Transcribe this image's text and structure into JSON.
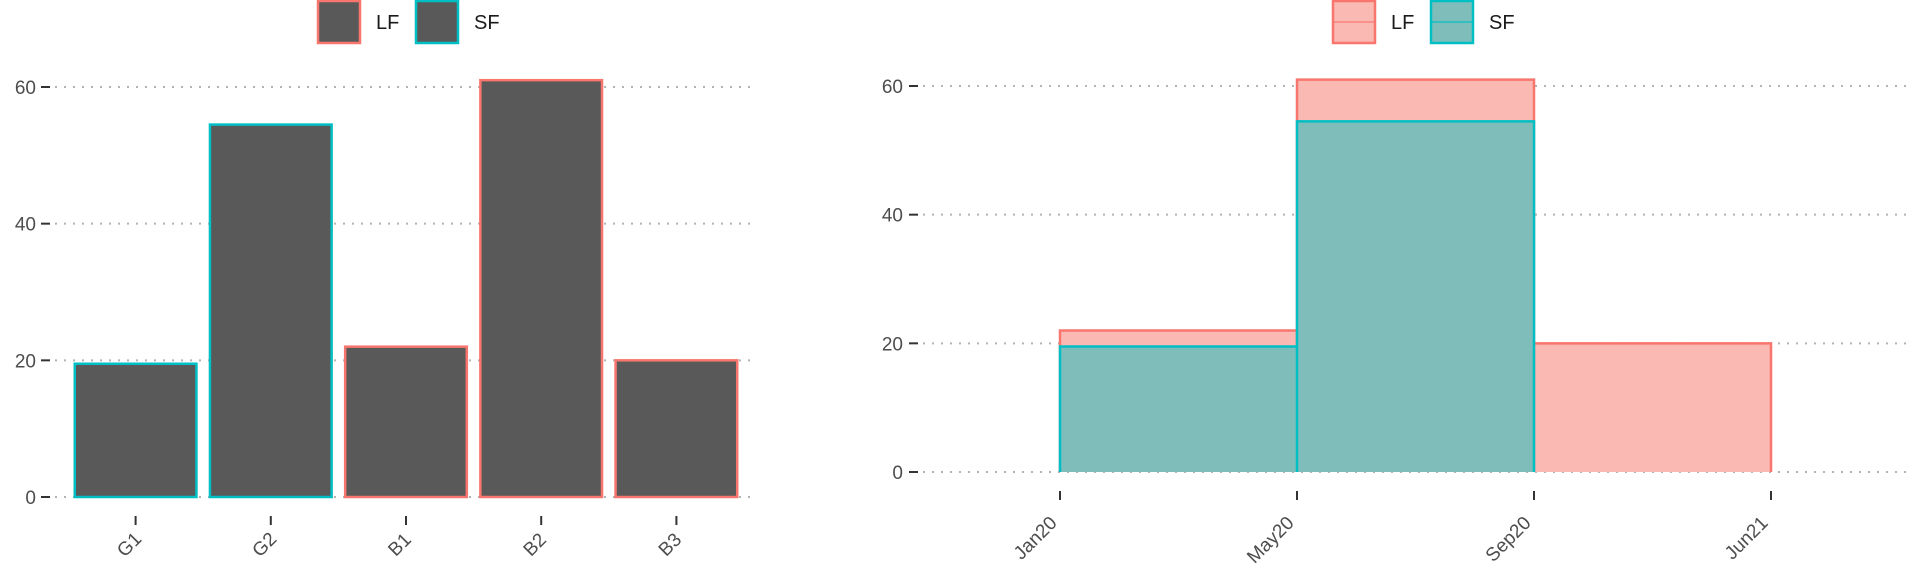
{
  "colors": {
    "LF": "#F8766D",
    "SF": "#00BFC4",
    "bar_fill": "#595959",
    "LF_area_fill": "#FBB9B4",
    "SF_area_fill": "#7FBDBB"
  },
  "chart_data": [
    {
      "type": "bar",
      "title": "",
      "xlabel": "",
      "ylabel": "",
      "categories": [
        "G1",
        "G2",
        "B1",
        "B2",
        "B3"
      ],
      "values": [
        19.5,
        54.5,
        22,
        61,
        20
      ],
      "group": [
        "SF",
        "SF",
        "LF",
        "LF",
        "LF"
      ],
      "ylim": [
        0,
        62
      ],
      "yticks": [
        0,
        20,
        40,
        60
      ],
      "legend": {
        "placement": "top",
        "entries": [
          "LF",
          "SF"
        ]
      },
      "grid": "horizontal dotted"
    },
    {
      "type": "area",
      "title": "",
      "xlabel": "",
      "ylabel": "",
      "x": [
        "Jan20",
        "May20",
        "Sep20",
        "Jun21"
      ],
      "xticks": [
        "Jan20",
        "May20",
        "Sep20",
        "Jun21"
      ],
      "series": [
        {
          "name": "LF",
          "values": [
            22,
            61,
            20,
            20
          ]
        },
        {
          "name": "SF",
          "values": [
            19.5,
            54.5,
            0,
            0
          ]
        }
      ],
      "step": true,
      "ylim": [
        0,
        62
      ],
      "yticks": [
        0,
        20,
        40,
        60
      ],
      "legend": {
        "placement": "top",
        "entries": [
          "LF",
          "SF"
        ]
      },
      "grid": "horizontal dotted"
    }
  ]
}
